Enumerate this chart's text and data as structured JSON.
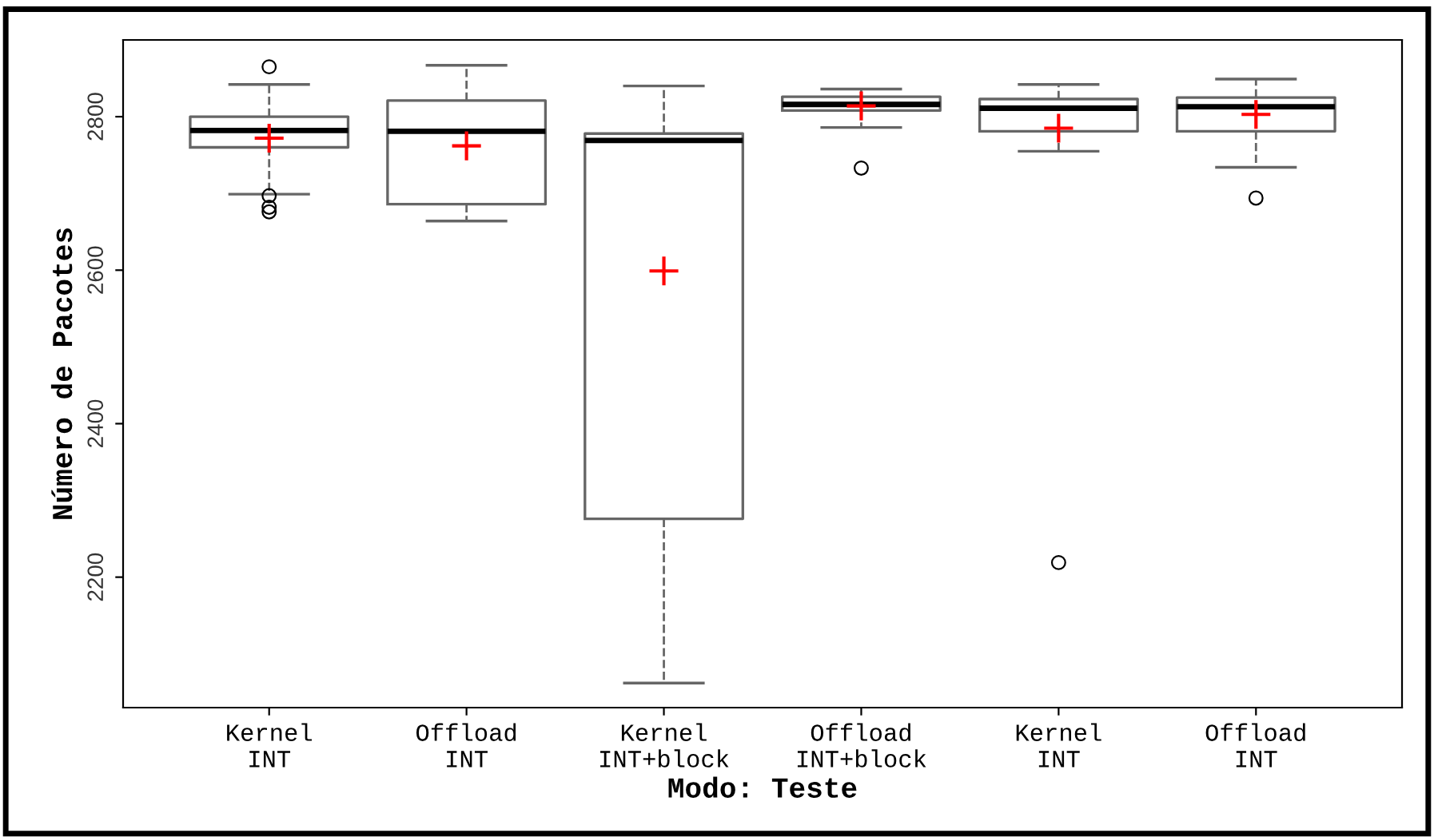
{
  "chart_data": {
    "type": "box",
    "xlabel": "Modo: Teste",
    "ylabel": "Número de Pacotes",
    "categories": [
      "Kernel\nINT",
      "Offload\nINT",
      "Kernel\nINT+block",
      "Offload\nINT+block",
      "Kernel\nINT",
      "Offload\nINT"
    ],
    "boxes": [
      {
        "low": 2699,
        "q1": 2760,
        "median": 2782,
        "q3": 2800,
        "high": 2842,
        "mean": 2772,
        "outliers": [
          2865,
          2697,
          2682,
          2676
        ]
      },
      {
        "low": 2664,
        "q1": 2686,
        "median": 2781,
        "q3": 2821,
        "high": 2867,
        "mean": 2762
      },
      {
        "low": 2062,
        "q1": 2276,
        "median": 2769,
        "q3": 2778,
        "high": 2840,
        "mean": 2599
      },
      {
        "low": 2786,
        "q1": 2808,
        "median": 2816,
        "q3": 2826,
        "high": 2836,
        "mean": 2814,
        "outliers": [
          2733
        ]
      },
      {
        "low": 2755,
        "q1": 2781,
        "median": 2811,
        "q3": 2823,
        "high": 2842,
        "mean": 2785,
        "outliers": [
          2219
        ]
      },
      {
        "low": 2734,
        "q1": 2781,
        "median": 2813,
        "q3": 2825,
        "high": 2849,
        "mean": 2803,
        "outliers": [
          2694
        ]
      }
    ],
    "color": "#666666",
    "ylim": [
      2030,
      2900
    ],
    "yticks": [
      2200,
      2400,
      2600,
      2800
    ],
    "grid": false,
    "legend": false
  }
}
